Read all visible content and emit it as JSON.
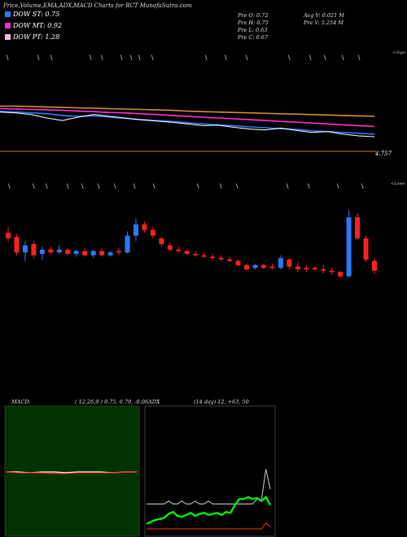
{
  "header": {
    "title": "Price,Volume,EMA,ADX,MACD Charts for RCT MunafaSutra.com",
    "legend": [
      {
        "label": "DOW ST: 0.75",
        "color": "#2979ff"
      },
      {
        "label": "DOW MT: 0.92",
        "color": "#ff2bd0"
      },
      {
        "label": "DOW PT: 1.28",
        "color": "#f8b4e8"
      }
    ],
    "prev_stats": [
      "Pre O: 0.72",
      "Pre H: 0.75",
      "Pre L: 0.63",
      "Pre C: 0.67"
    ],
    "vol_stats": [
      "Avg V: 0.021 M",
      "Pre V: 5.254 M"
    ]
  },
  "price_panel": {
    "corner_label": "<Tops",
    "price_label": "4.757"
  },
  "candle_panel": {
    "corner_label": "<Lows"
  },
  "macd_panel": {
    "label": "MACD:",
    "params": "( 12,26,9 ) 0.75, 0.79, -0.06"
  },
  "adx_panel": {
    "label": "ADX",
    "params": "(14 day) 12, +63, 50"
  },
  "chart_data": [
    {
      "type": "line",
      "name": "price-ema-panel",
      "series": [
        {
          "name": "",
          "color": "#cc8a2c",
          "values": [
            15.4,
            15.4,
            15.3,
            15.2,
            15.1,
            15.0,
            14.9,
            14.8,
            14.7,
            14.6,
            14.5,
            14.4,
            14.2,
            14.1,
            14.0,
            13.9,
            13.8,
            13.7,
            13.6,
            13.5,
            13.4,
            13.3,
            13.2,
            13.1,
            13.0
          ]
        },
        {
          "name": "",
          "color": "#ff2bd0",
          "values": [
            14.8,
            14.7,
            14.6,
            14.5,
            14.4,
            14.2,
            14.1,
            13.9,
            13.8,
            13.6,
            13.4,
            13.2,
            13.0,
            12.8,
            12.6,
            12.4,
            12.2,
            12.0,
            11.8,
            11.6,
            11.4,
            11.2,
            11.0,
            10.8,
            10.6
          ]
        },
        {
          "name": "",
          "color": "#2979ff",
          "values": [
            14.2,
            14.0,
            13.8,
            13.6,
            13.2,
            13.0,
            13.1,
            12.8,
            12.5,
            12.2,
            12.0,
            11.8,
            11.5,
            11.2,
            11.0,
            10.8,
            10.5,
            10.3,
            10.1,
            9.9,
            9.6,
            9.4,
            9.2,
            9.0,
            8.8
          ]
        },
        {
          "name": "",
          "color": "#ffffff",
          "values": [
            14.0,
            13.8,
            13.4,
            12.6,
            12.0,
            12.8,
            13.4,
            13.0,
            12.6,
            12.2,
            11.9,
            11.6,
            11.2,
            10.8,
            10.9,
            10.4,
            10.0,
            9.8,
            10.2,
            9.7,
            9.2,
            9.4,
            8.8,
            8.4,
            8.2
          ]
        }
      ],
      "ylim": [
        4.757,
        17
      ]
    },
    {
      "type": "bar",
      "name": "candles",
      "candles": [
        {
          "o": 9.2,
          "h": 9.6,
          "l": 8.6,
          "c": 8.8,
          "up": false
        },
        {
          "o": 8.9,
          "h": 9.1,
          "l": 7.6,
          "c": 7.8,
          "up": false
        },
        {
          "o": 7.8,
          "h": 8.6,
          "l": 7.2,
          "c": 8.3,
          "up": true
        },
        {
          "o": 8.4,
          "h": 8.6,
          "l": 7.4,
          "c": 7.6,
          "up": false
        },
        {
          "o": 7.7,
          "h": 8.2,
          "l": 7.3,
          "c": 8.0,
          "up": true
        },
        {
          "o": 8.0,
          "h": 8.2,
          "l": 7.6,
          "c": 7.8,
          "up": false
        },
        {
          "o": 7.8,
          "h": 8.3,
          "l": 7.7,
          "c": 8.0,
          "up": true
        },
        {
          "o": 8.0,
          "h": 8.1,
          "l": 7.6,
          "c": 7.7,
          "up": false
        },
        {
          "o": 7.7,
          "h": 8.0,
          "l": 7.5,
          "c": 7.9,
          "up": true
        },
        {
          "o": 7.9,
          "h": 8.1,
          "l": 7.5,
          "c": 7.6,
          "up": false
        },
        {
          "o": 7.6,
          "h": 8.0,
          "l": 7.4,
          "c": 7.9,
          "up": true
        },
        {
          "o": 7.9,
          "h": 8.1,
          "l": 7.5,
          "c": 7.6,
          "up": false
        },
        {
          "o": 7.6,
          "h": 7.9,
          "l": 7.5,
          "c": 7.8,
          "up": true
        },
        {
          "o": 7.8,
          "h": 8.1,
          "l": 7.6,
          "c": 7.9,
          "up": false
        },
        {
          "o": 7.8,
          "h": 9.3,
          "l": 7.7,
          "c": 9.0,
          "up": true
        },
        {
          "o": 9.0,
          "h": 10.2,
          "l": 8.6,
          "c": 9.8,
          "up": true
        },
        {
          "o": 9.8,
          "h": 10.0,
          "l": 9.2,
          "c": 9.4,
          "up": false
        },
        {
          "o": 9.4,
          "h": 9.6,
          "l": 8.8,
          "c": 9.0,
          "up": false
        },
        {
          "o": 8.8,
          "h": 8.9,
          "l": 8.2,
          "c": 8.4,
          "up": false
        },
        {
          "o": 8.3,
          "h": 8.5,
          "l": 7.9,
          "c": 8.0,
          "up": false
        },
        {
          "o": 8.0,
          "h": 8.2,
          "l": 7.8,
          "c": 7.9,
          "up": false
        },
        {
          "o": 7.9,
          "h": 8.0,
          "l": 7.6,
          "c": 7.7,
          "up": false
        },
        {
          "o": 7.7,
          "h": 7.9,
          "l": 7.5,
          "c": 7.6,
          "up": false
        },
        {
          "o": 7.6,
          "h": 7.8,
          "l": 7.4,
          "c": 7.5,
          "up": false
        },
        {
          "o": 7.5,
          "h": 7.7,
          "l": 7.3,
          "c": 7.4,
          "up": false
        },
        {
          "o": 7.4,
          "h": 7.6,
          "l": 7.2,
          "c": 7.3,
          "up": false
        },
        {
          "o": 7.3,
          "h": 7.5,
          "l": 7.1,
          "c": 7.2,
          "up": false
        },
        {
          "o": 7.2,
          "h": 7.3,
          "l": 6.8,
          "c": 6.9,
          "up": false
        },
        {
          "o": 6.9,
          "h": 7.0,
          "l": 6.5,
          "c": 6.6,
          "up": false
        },
        {
          "o": 6.7,
          "h": 7.0,
          "l": 6.6,
          "c": 6.9,
          "up": true
        },
        {
          "o": 6.9,
          "h": 7.0,
          "l": 6.6,
          "c": 6.7,
          "up": false
        },
        {
          "o": 6.7,
          "h": 7.0,
          "l": 6.6,
          "c": 6.8,
          "up": false
        },
        {
          "o": 6.7,
          "h": 7.6,
          "l": 6.6,
          "c": 7.4,
          "up": true
        },
        {
          "o": 7.3,
          "h": 7.4,
          "l": 6.6,
          "c": 6.8,
          "up": false
        },
        {
          "o": 6.8,
          "h": 7.1,
          "l": 6.4,
          "c": 6.6,
          "up": false
        },
        {
          "o": 6.6,
          "h": 6.9,
          "l": 6.4,
          "c": 6.7,
          "up": false
        },
        {
          "o": 6.7,
          "h": 6.8,
          "l": 6.5,
          "c": 6.6,
          "up": false
        },
        {
          "o": 6.6,
          "h": 6.9,
          "l": 6.3,
          "c": 6.5,
          "up": false
        },
        {
          "o": 6.5,
          "h": 6.7,
          "l": 6.2,
          "c": 6.4,
          "up": false
        },
        {
          "o": 6.4,
          "h": 6.5,
          "l": 6.0,
          "c": 6.1,
          "up": false
        },
        {
          "o": 6.1,
          "h": 10.8,
          "l": 6.0,
          "c": 10.3,
          "up": true
        },
        {
          "o": 10.3,
          "h": 10.6,
          "l": 8.7,
          "c": 8.8,
          "up": false
        },
        {
          "o": 8.8,
          "h": 9.0,
          "l": 7.1,
          "c": 7.3,
          "up": false
        },
        {
          "o": 7.2,
          "h": 7.4,
          "l": 6.3,
          "c": 6.5,
          "up": false
        }
      ]
    },
    {
      "type": "line",
      "name": "macd",
      "series": [
        {
          "name": "",
          "color": "#ffffff",
          "values": [
            0.0,
            0.0,
            -0.01,
            0.0,
            0.0,
            -0.01,
            0.0,
            0.0,
            0.0,
            -0.01,
            0.0,
            0.0
          ]
        },
        {
          "name": "",
          "color": "#ff3030",
          "values": [
            0.0,
            -0.01,
            -0.01,
            -0.01,
            -0.02,
            -0.02,
            -0.01,
            -0.01,
            -0.01,
            -0.01,
            0.0,
            0.0
          ]
        }
      ]
    },
    {
      "type": "line",
      "name": "adx",
      "series": [
        {
          "name": "",
          "color": "#cccccc",
          "values": [
            25,
            25,
            25,
            25,
            25,
            28,
            25,
            25,
            28,
            25,
            25,
            28,
            25,
            25,
            28,
            25,
            25,
            25,
            25,
            25,
            25,
            25,
            25,
            25,
            25,
            30,
            28,
            60,
            40
          ]
        },
        {
          "name": "",
          "color": "#00ee00",
          "values": [
            5,
            7,
            9,
            10,
            11,
            15,
            17,
            13,
            12,
            14,
            16,
            13,
            15,
            16,
            14,
            15,
            16,
            14,
            17,
            16,
            24,
            30,
            30,
            32,
            30,
            31,
            28,
            32,
            24
          ]
        },
        {
          "name": "",
          "color": "#ff3000",
          "values": [
            0,
            0,
            0,
            0,
            0,
            0,
            0,
            0,
            0,
            0,
            0,
            0,
            0,
            0,
            0,
            0,
            0,
            0,
            0,
            0,
            0,
            0,
            0,
            0,
            0,
            0,
            0,
            6,
            2
          ]
        }
      ]
    }
  ]
}
